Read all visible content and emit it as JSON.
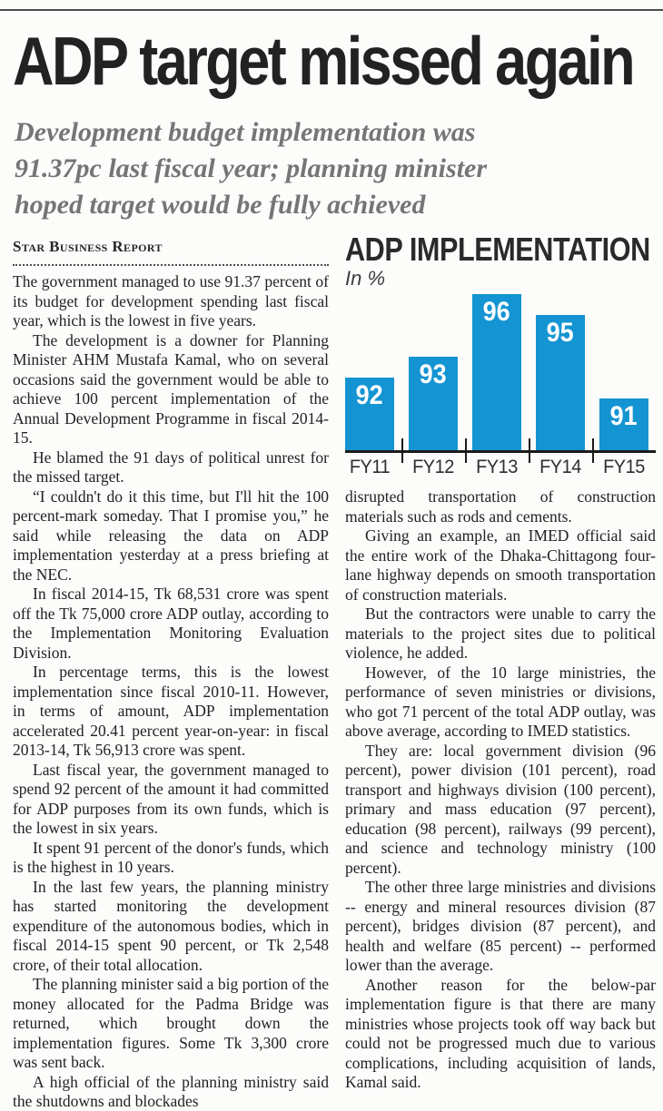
{
  "page": {
    "headline": "ADP target missed again",
    "subtitle_lines": [
      "Development budget implementation was",
      "91.37pc last fiscal year; planning minister",
      "hoped target would be fully achieved"
    ],
    "byline": "Star Business Report"
  },
  "article": {
    "left_paragraphs": [
      "The government managed to use 91.37 percent of its budget for development spending last fiscal year, which is the lowest in five years.",
      "The development is a downer for Planning Minister AHM Mustafa Kamal, who on several occasions said the government would be able to achieve 100 percent implementation of the Annual Development Programme in fiscal 2014-15.",
      "He blamed the 91 days of political unrest for the missed target.",
      "“I couldn't do it this time, but I'll hit the 100 percent-mark someday. That I promise you,” he said while releasing the data on ADP implementation yesterday at a press briefing at the NEC.",
      "In fiscal 2014-15, Tk 68,531 crore was spent off the Tk 75,000 crore ADP outlay, according to the Implementation Monitoring Evaluation Division.",
      "In percentage terms, this is the lowest implementation since fiscal 2010-11. However, in terms of amount, ADP implementation accelerated 20.41 percent year-on-year: in fiscal 2013-14, Tk 56,913 crore was spent.",
      "Last fiscal year, the government managed to spend 92 percent of the amount it had committed for ADP purposes from its own funds, which is the lowest in six years.",
      "It spent 91 percent of the donor's funds, which is the highest in 10 years.",
      "In the last few years, the planning ministry has started monitoring the development expenditure of the autonomous bodies, which in fiscal 2014-15 spent 90 percent, or Tk 2,548 crore, of their total allocation.",
      "The planning minister said a big portion of the money allocated for the Padma Bridge was returned, which brought down the implementation figures. Some Tk 3,300 crore was sent back.",
      "A high official of the planning ministry said the shutdowns and blockades"
    ],
    "right_paragraphs": [
      "disrupted transportation of construction materials such as rods and cements.",
      "Giving an example, an IMED official said the entire work of the Dhaka-Chittagong four-lane highway depends on smooth transportation of construction materials.",
      "But the contractors were unable to carry the materials to the project sites due to political violence, he added.",
      "However, of the 10 large ministries, the performance of seven ministries or divisions, who got 71 percent of the total ADP outlay, was above average, according to IMED statistics.",
      "They are: local government division (96 percent), power division (101 percent), road transport and highways division (100 percent), primary and mass education (97 percent), education (98 percent), railways (99 percent), and science and technology ministry (100 percent).",
      "The other three large ministries and divisions -- energy and mineral resources division (87 percent), bridges division (87 percent), and health and welfare (85 percent) -- performed lower than the average.",
      "Another reason for the below-par implementation figure is that there are many ministries whose projects took off way back but could not be progressed much due to various complications, including acquisition of lands, Kamal said."
    ]
  },
  "chart_data": {
    "type": "bar",
    "title": "ADP IMPLEMENTATION",
    "unit_label": "In %",
    "categories": [
      "FY11",
      "FY12",
      "FY13",
      "FY14",
      "FY15"
    ],
    "values": [
      92,
      93,
      96,
      95,
      91
    ],
    "ylim": [
      88.5,
      96
    ],
    "grid": false,
    "legend": false,
    "data_labels": true,
    "bar_color": "#1494d2",
    "value_label_color": "#ffffff",
    "axis_color": "#1a1a1a",
    "tick_color": "#1a1a1a",
    "x_label_color": "#2e2e2e"
  }
}
